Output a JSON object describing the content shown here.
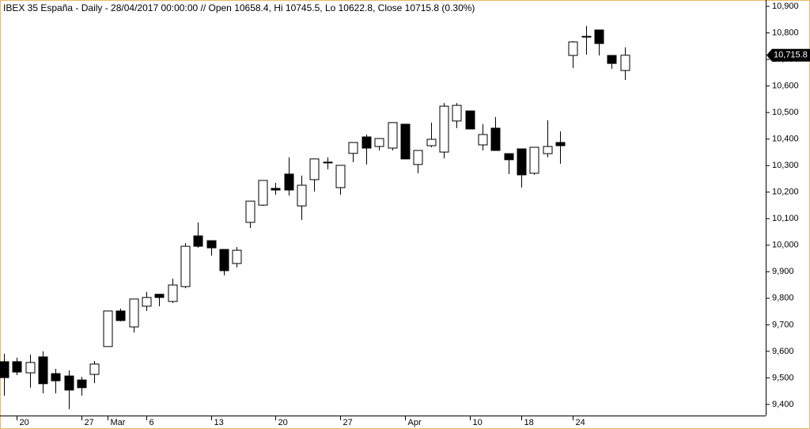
{
  "chart_data": {
    "type": "candlestick",
    "title": "IBEX 35 España - Daily - 28/04/2017 00:00:00 // Open 10658.4, Hi 10745.5, Lo 10622.8, Close 10715.8 (0.30%)",
    "categories": [
      null,
      "20",
      null,
      null,
      null,
      null,
      "27",
      null,
      "Mar",
      null,
      null,
      "6",
      null,
      null,
      null,
      null,
      "13",
      null,
      null,
      null,
      null,
      "20",
      null,
      null,
      null,
      null,
      "27",
      null,
      null,
      null,
      null,
      "Apr",
      null,
      null,
      null,
      null,
      "10",
      null,
      null,
      null,
      "18",
      null,
      null,
      null,
      "24",
      null,
      null,
      null,
      null
    ],
    "open": [
      9561,
      9561,
      9519,
      9579,
      9516,
      9507,
      9492,
      9513,
      9618,
      9752,
      9692,
      9770,
      9815,
      9788,
      9844,
      10035,
      10017,
      9984,
      9931,
      10086,
      10151,
      10214,
      10268,
      10148,
      10247,
      10313,
      10217,
      10346,
      10408,
      10372,
      10366,
      10456,
      10304,
      10375,
      10351,
      10468,
      10506,
      10378,
      10441,
      10345,
      10363,
      10271,
      10345,
      10387,
      10715,
      10784,
      10811,
      10715,
      10658.4
    ],
    "high": [
      9591,
      9576,
      9588,
      9600,
      9534,
      9528,
      9504,
      9564,
      9752,
      9761,
      9797,
      9824,
      9815,
      9874,
      10008,
      10086,
      10017,
      9984,
      9993,
      10166,
      10244,
      10235,
      10331,
      10262,
      10325,
      10331,
      10301,
      10387,
      10417,
      10402,
      10462,
      10456,
      10357,
      10462,
      10536,
      10536,
      10506,
      10456,
      10483,
      10345,
      10363,
      10369,
      10471,
      10429,
      10769,
      10826,
      10811,
      10715,
      10745.5
    ],
    "low": [
      9433,
      9510,
      9463,
      9442,
      9442,
      9382,
      9433,
      9480,
      9618,
      9713,
      9671,
      9752,
      9770,
      9782,
      9838,
      9990,
      9960,
      9886,
      9916,
      10065,
      10148,
      10190,
      10187,
      10095,
      10202,
      10286,
      10190,
      10313,
      10304,
      10357,
      10357,
      10325,
      10271,
      10369,
      10327,
      10441,
      10438,
      10357,
      10357,
      10268,
      10217,
      10265,
      10331,
      10307,
      10668,
      10718,
      10715,
      10665,
      10622.8
    ],
    "close": [
      9501,
      9522,
      9558,
      9478,
      9489,
      9454,
      9463,
      9552,
      9752,
      9716,
      9797,
      9803,
      9803,
      9850,
      9996,
      9996,
      9990,
      9904,
      9981,
      10166,
      10244,
      10208,
      10208,
      10226,
      10325,
      10310,
      10301,
      10387,
      10366,
      10402,
      10462,
      10325,
      10357,
      10399,
      10524,
      10527,
      10438,
      10417,
      10357,
      10322,
      10265,
      10369,
      10372,
      10375,
      10766,
      10787,
      10760,
      10685,
      10715.8
    ],
    "up_color": "#ffffff",
    "down_color": "#000000",
    "ylim": [
      9358,
      10924
    ],
    "yticks": [
      {
        "value": 9400,
        "label": "9,400"
      },
      {
        "value": 9500,
        "label": "9,500"
      },
      {
        "value": 9600,
        "label": "9,600"
      },
      {
        "value": 9700,
        "label": "9,700"
      },
      {
        "value": 9800,
        "label": "9,800"
      },
      {
        "value": 9900,
        "label": "9,900"
      },
      {
        "value": 10000,
        "label": "10,000"
      },
      {
        "value": 10100,
        "label": "10,100"
      },
      {
        "value": 10200,
        "label": "10,200"
      },
      {
        "value": 10300,
        "label": "10,300"
      },
      {
        "value": 10400,
        "label": "10,400"
      },
      {
        "value": 10500,
        "label": "10,500"
      },
      {
        "value": 10600,
        "label": "10,600"
      },
      {
        "value": 10700,
        "label": "10,700"
      },
      {
        "value": 10800,
        "label": "10,800"
      },
      {
        "value": 10900,
        "label": "10,900"
      }
    ],
    "last_price": {
      "value": 10715.8,
      "label": "10,715.8"
    },
    "grid": false
  }
}
